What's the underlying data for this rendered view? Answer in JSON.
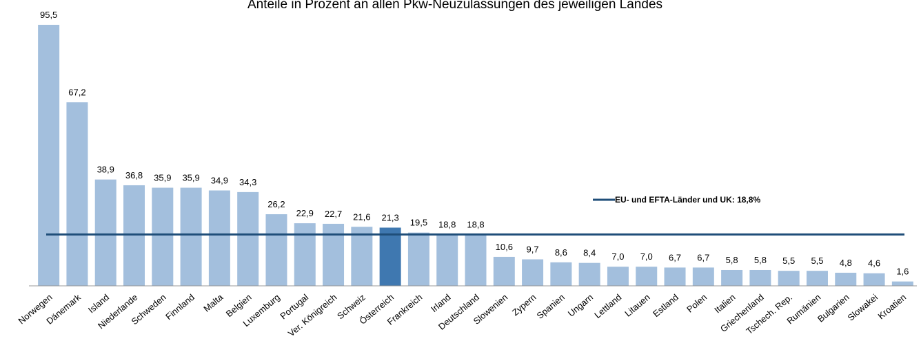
{
  "chart_data": {
    "type": "bar",
    "title": "Anteile in Prozent an allen Pkw-Neuzulassungen des jeweiligen Landes",
    "categories": [
      "Norwegen",
      "Dänemark",
      "Island",
      "Niederlande",
      "Schweden",
      "Finnland",
      "Malta",
      "Belgien",
      "Luxemburg",
      "Portugal",
      "Ver. Königreich",
      "Schweiz",
      "Österreich",
      "Frankreich",
      "Irland",
      "Deutschland",
      "Slowenien",
      "Zypern",
      "Spanien",
      "Ungarn",
      "Lettland",
      "Litauen",
      "Estland",
      "Polen",
      "Italien",
      "Griechenland",
      "Tschech. Rep.",
      "Rumänien",
      "Bulgarien",
      "Slowakei",
      "Kroatien"
    ],
    "values": [
      95.5,
      67.2,
      38.9,
      36.8,
      35.9,
      35.9,
      34.9,
      34.3,
      26.2,
      22.9,
      22.7,
      21.6,
      21.3,
      19.5,
      18.8,
      18.8,
      10.6,
      9.7,
      8.6,
      8.4,
      7.0,
      7.0,
      6.7,
      6.7,
      5.8,
      5.8,
      5.5,
      5.5,
      4.8,
      4.6,
      1.6
    ],
    "value_labels": [
      "95,5",
      "67,2",
      "38,9",
      "36,8",
      "35,9",
      "35,9",
      "34,9",
      "34,3",
      "26,2",
      "22,9",
      "22,7",
      "21,6",
      "21,3",
      "19,5",
      "18,8",
      "18,8",
      "10,6",
      "9,7",
      "8,6",
      "8,4",
      "7,0",
      "7,0",
      "6,7",
      "6,7",
      "5,8",
      "5,8",
      "5,5",
      "5,5",
      "4,8",
      "4,6",
      "1,6"
    ],
    "color": "#a3bfdd",
    "highlight_category": "Österreich",
    "highlight_color": "#3f78b0",
    "reference_line": {
      "value": 18.8,
      "label": "EU- und EFTA-Länder und UK: 18,8%",
      "color": "#1f4e79"
    }
  }
}
